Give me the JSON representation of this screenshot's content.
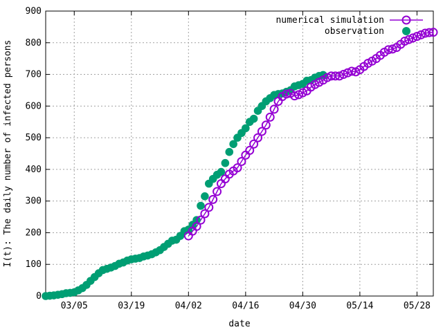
{
  "chart_data": {
    "type": "scatter",
    "xlabel": "date",
    "ylabel": "I(t): The daily number of infected persons",
    "ylim": [
      0,
      900
    ],
    "xlim": [
      "2020-02-27",
      "2020-06-01"
    ],
    "x_tick_labels": [
      "03/05",
      "03/19",
      "04/02",
      "04/16",
      "04/30",
      "05/14",
      "05/28"
    ],
    "x_tick_dates": [
      "2020-03-05",
      "2020-03-19",
      "2020-04-02",
      "2020-04-16",
      "2020-04-30",
      "2020-05-14",
      "2020-05-28"
    ],
    "y_ticks": [
      0,
      100,
      200,
      300,
      400,
      500,
      600,
      700,
      800,
      900
    ],
    "grid": true,
    "legend_position": "top-right",
    "series": [
      {
        "name": "numerical simulation",
        "marker": "open-circle",
        "color": "#9400d3",
        "x": [
          "2020-04-02",
          "2020-04-03",
          "2020-04-04",
          "2020-04-05",
          "2020-04-06",
          "2020-04-07",
          "2020-04-08",
          "2020-04-09",
          "2020-04-10",
          "2020-04-11",
          "2020-04-12",
          "2020-04-13",
          "2020-04-14",
          "2020-04-15",
          "2020-04-16",
          "2020-04-17",
          "2020-04-18",
          "2020-04-19",
          "2020-04-20",
          "2020-04-21",
          "2020-04-22",
          "2020-04-23",
          "2020-04-24",
          "2020-04-25",
          "2020-04-26",
          "2020-04-27",
          "2020-04-28",
          "2020-04-29",
          "2020-04-30",
          "2020-05-01",
          "2020-05-02",
          "2020-05-03",
          "2020-05-04",
          "2020-05-05",
          "2020-05-06",
          "2020-05-07",
          "2020-05-08",
          "2020-05-09",
          "2020-05-10",
          "2020-05-11",
          "2020-05-12",
          "2020-05-13",
          "2020-05-14",
          "2020-05-15",
          "2020-05-16",
          "2020-05-17",
          "2020-05-18",
          "2020-05-19",
          "2020-05-20",
          "2020-05-21",
          "2020-05-22",
          "2020-05-23",
          "2020-05-24",
          "2020-05-25",
          "2020-05-26",
          "2020-05-27",
          "2020-05-28",
          "2020-05-29",
          "2020-05-30",
          "2020-05-31",
          "2020-06-01"
        ],
        "y": [
          190,
          205,
          220,
          240,
          260,
          280,
          305,
          330,
          355,
          370,
          385,
          395,
          405,
          425,
          445,
          460,
          480,
          500,
          520,
          540,
          565,
          590,
          615,
          630,
          638,
          640,
          632,
          636,
          642,
          648,
          660,
          668,
          675,
          682,
          690,
          695,
          695,
          695,
          700,
          705,
          710,
          708,
          715,
          725,
          735,
          742,
          750,
          760,
          770,
          778,
          780,
          785,
          795,
          805,
          810,
          815,
          820,
          825,
          830,
          832,
          833
        ]
      },
      {
        "name": "observation",
        "marker": "filled-circle",
        "color": "#009e73",
        "x": [
          "2020-02-27",
          "2020-02-28",
          "2020-02-29",
          "2020-03-01",
          "2020-03-02",
          "2020-03-03",
          "2020-03-04",
          "2020-03-05",
          "2020-03-06",
          "2020-03-07",
          "2020-03-08",
          "2020-03-09",
          "2020-03-10",
          "2020-03-11",
          "2020-03-12",
          "2020-03-13",
          "2020-03-14",
          "2020-03-15",
          "2020-03-16",
          "2020-03-17",
          "2020-03-18",
          "2020-03-19",
          "2020-03-20",
          "2020-03-21",
          "2020-03-22",
          "2020-03-23",
          "2020-03-24",
          "2020-03-25",
          "2020-03-26",
          "2020-03-27",
          "2020-03-28",
          "2020-03-29",
          "2020-03-30",
          "2020-03-31",
          "2020-04-01",
          "2020-04-02",
          "2020-04-03",
          "2020-04-04",
          "2020-04-05",
          "2020-04-06",
          "2020-04-07",
          "2020-04-08",
          "2020-04-09",
          "2020-04-10",
          "2020-04-11",
          "2020-04-12",
          "2020-04-13",
          "2020-04-14",
          "2020-04-15",
          "2020-04-16",
          "2020-04-17",
          "2020-04-18",
          "2020-04-19",
          "2020-04-20",
          "2020-04-21",
          "2020-04-22",
          "2020-04-23",
          "2020-04-24",
          "2020-04-25",
          "2020-04-26",
          "2020-04-27",
          "2020-04-28",
          "2020-04-29",
          "2020-04-30",
          "2020-05-01",
          "2020-05-02",
          "2020-05-03",
          "2020-05-04",
          "2020-05-05"
        ],
        "y": [
          0,
          1,
          2,
          4,
          6,
          9,
          10,
          12,
          18,
          25,
          35,
          48,
          60,
          72,
          82,
          86,
          90,
          95,
          102,
          106,
          112,
          116,
          118,
          120,
          125,
          128,
          132,
          138,
          145,
          155,
          165,
          175,
          178,
          190,
          205,
          210,
          225,
          240,
          285,
          315,
          355,
          370,
          383,
          392,
          420,
          455,
          480,
          500,
          515,
          530,
          550,
          560,
          585,
          600,
          615,
          625,
          635,
          638,
          640,
          645,
          650,
          662,
          666,
          670,
          680,
          682,
          690,
          695,
          698
        ]
      }
    ]
  }
}
